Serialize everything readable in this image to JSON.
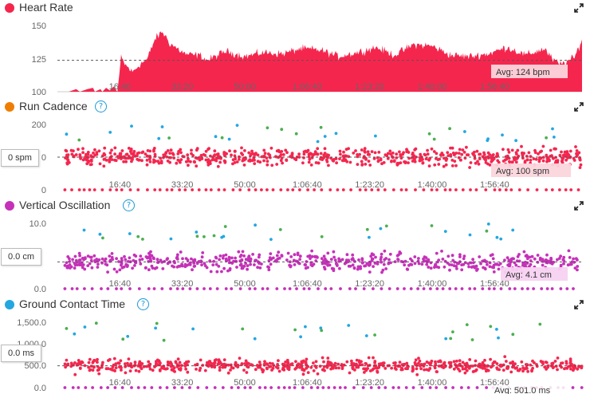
{
  "colors": {
    "heart_rate": "#f5264e",
    "cadence_legend": "#ef7d00",
    "vertical_oscillation": "#c531b8",
    "ground_contact": "#23a7e0",
    "help": "#1a9ad6",
    "avg_line": "#777777",
    "avg_label_bg": "#fbd5dc"
  },
  "icons": {
    "help": "question-circle-icon",
    "expand": "expand-arrows-icon"
  },
  "x_ticks": [
    "16:40",
    "33:20",
    "50:00",
    "1:06:40",
    "1:23:20",
    "1:40:00",
    "1:56:40"
  ],
  "panels": {
    "heart_rate": {
      "title": "Heart Rate",
      "y_ticks": [
        "150",
        "125",
        "100"
      ],
      "avg_label": "Avg: 124 bpm"
    },
    "run_cadence": {
      "title": "Run Cadence",
      "help": "?",
      "y_ticks": [
        "200",
        "0",
        "0"
      ],
      "avg_label": "Avg: 100 spm",
      "current_value": "0 spm"
    },
    "vertical_oscillation": {
      "title": "Vertical Oscillation",
      "help": "?",
      "y_ticks": [
        "10.0",
        "0.0"
      ],
      "avg_label": "Avg: 4.1 cm",
      "current_value": "0.0 cm"
    },
    "ground_contact_time": {
      "title": "Ground Contact Time",
      "help": "?",
      "y_ticks": [
        "1,500.0",
        "1,000.0",
        "500.0",
        "0.0"
      ],
      "avg_label": "Avg: 501.0 ms",
      "current_value": "0.0 ms"
    }
  },
  "chart_data": [
    {
      "type": "area",
      "title": "Heart Rate",
      "ylim": [
        100,
        150
      ],
      "x_tick_labels": [
        "16:40",
        "33:20",
        "50:00",
        "1:06:40",
        "1:23:20",
        "1:40:00",
        "1:56:40"
      ],
      "average": 124,
      "series": [
        {
          "x": [
            0,
            3,
            5,
            6,
            8,
            9.5,
            10,
            11.5,
            12,
            13,
            14,
            15,
            16,
            17,
            18,
            20,
            22,
            24,
            26,
            27,
            28,
            30,
            32,
            34,
            36,
            38,
            40,
            45,
            50,
            55,
            60,
            65,
            70,
            75,
            80,
            85,
            90,
            95,
            100,
            105,
            110,
            115,
            120,
            125,
            130,
            132,
            134,
            136,
            138,
            140
          ],
          "values": [
            100,
            100,
            102,
            100,
            102,
            103,
            100,
            102,
            100,
            103,
            101,
            104,
            100,
            126,
            121,
            115,
            121,
            125,
            140,
            143,
            146,
            137,
            133,
            129,
            128,
            128,
            124,
            131,
            127,
            130,
            129,
            133,
            132,
            127,
            130,
            134,
            128,
            136,
            135,
            128,
            127,
            129,
            134,
            128,
            133,
            125,
            121,
            123,
            126,
            140
          ]
        }
      ]
    },
    {
      "type": "scatter",
      "title": "Run Cadence",
      "ylim": [
        0,
        200
      ],
      "x_tick_labels": [
        "16:40",
        "33:20",
        "50:00",
        "1:06:40",
        "1:23:20",
        "1:40:00",
        "1:56:40"
      ],
      "average": 100,
      "series": [
        {
          "value_range": [
            60,
            200
          ],
          "typical": 100,
          "zero_points": true
        }
      ]
    },
    {
      "type": "scatter",
      "title": "Vertical Oscillation",
      "ylim": [
        0,
        10
      ],
      "x_tick_labels": [
        "16:40",
        "33:20",
        "50:00",
        "1:06:40",
        "1:23:20",
        "1:40:00",
        "1:56:40"
      ],
      "average": 4.1,
      "series": [
        {
          "value_range": [
            2.5,
            10
          ],
          "typical": 4.1,
          "zero_points": true
        }
      ]
    },
    {
      "type": "scatter",
      "title": "Ground Contact Time",
      "ylim": [
        0,
        1500
      ],
      "x_tick_labels": [
        "16:40",
        "33:20",
        "50:00",
        "1:06:40",
        "1:23:20",
        "1:40:00",
        "1:56:40"
      ],
      "average": 501,
      "series": [
        {
          "value_range": [
            200,
            1000
          ],
          "typical": 501,
          "zero_points": true
        }
      ]
    }
  ]
}
